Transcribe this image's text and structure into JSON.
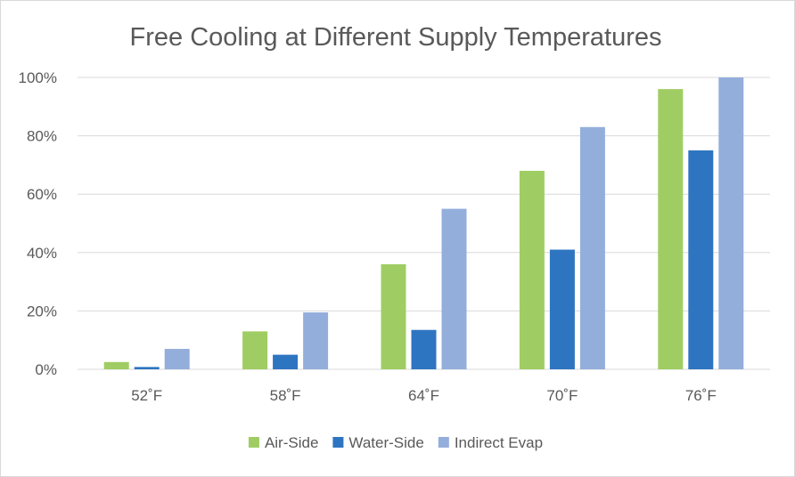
{
  "chart_data": {
    "type": "bar",
    "title": "Free Cooling at Different Supply Temperatures",
    "xlabel": "",
    "ylabel": "",
    "categories": [
      "52˚F",
      "58˚F",
      "64˚F",
      "70˚F",
      "76˚F"
    ],
    "yticks": [
      "0%",
      "20%",
      "40%",
      "60%",
      "80%",
      "100%"
    ],
    "ylim": [
      0,
      100
    ],
    "grid": true,
    "legend_position": "bottom",
    "series": [
      {
        "name": "Air-Side",
        "color": "#9fcd63",
        "values": [
          2.5,
          13,
          36,
          68,
          96
        ]
      },
      {
        "name": "Water-Side",
        "color": "#2e75c1",
        "values": [
          0.8,
          5,
          13.5,
          41,
          75
        ]
      },
      {
        "name": "Indirect Evap",
        "color": "#94aedc",
        "values": [
          7,
          19.5,
          55,
          83,
          100
        ]
      }
    ]
  }
}
